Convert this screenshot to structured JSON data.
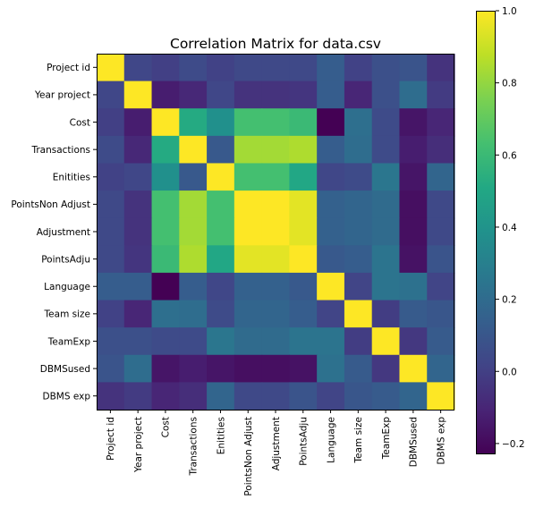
{
  "chart_data": {
    "type": "heatmap",
    "title": "Correlation Matrix for data.csv",
    "labels": [
      "Project id",
      "Year project",
      "Cost",
      "Transactions",
      "Enitities",
      "PointsNon Adjust",
      "Adjustment",
      "PointsAdju",
      "Language",
      "Team size",
      "TeamExp",
      "DBMSused",
      "DBMS exp"
    ],
    "matrix": [
      [
        1.0,
        0.03,
        0.0,
        0.05,
        0.01,
        0.04,
        0.04,
        0.04,
        0.13,
        0.01,
        0.07,
        0.09,
        -0.05
      ],
      [
        0.03,
        1.0,
        -0.13,
        -0.09,
        0.03,
        -0.05,
        -0.05,
        -0.04,
        0.13,
        -0.1,
        0.07,
        0.21,
        -0.02
      ],
      [
        0.0,
        -0.13,
        1.0,
        0.52,
        0.38,
        0.63,
        0.63,
        0.6,
        -0.23,
        0.22,
        0.05,
        -0.16,
        -0.1
      ],
      [
        0.05,
        -0.09,
        0.52,
        1.0,
        0.11,
        0.83,
        0.83,
        0.85,
        0.13,
        0.21,
        0.05,
        -0.13,
        -0.07
      ],
      [
        0.01,
        0.03,
        0.38,
        0.11,
        1.0,
        0.63,
        0.63,
        0.5,
        0.03,
        0.05,
        0.25,
        -0.16,
        0.17
      ],
      [
        0.04,
        -0.05,
        0.63,
        0.83,
        0.63,
        1.0,
        1.0,
        0.95,
        0.15,
        0.17,
        0.2,
        -0.18,
        0.04
      ],
      [
        0.04,
        -0.05,
        0.63,
        0.83,
        0.63,
        1.0,
        1.0,
        0.95,
        0.15,
        0.17,
        0.2,
        -0.18,
        0.04
      ],
      [
        0.04,
        -0.04,
        0.6,
        0.85,
        0.5,
        0.95,
        0.95,
        1.0,
        0.11,
        0.13,
        0.24,
        -0.17,
        0.09
      ],
      [
        0.13,
        0.13,
        -0.23,
        0.13,
        0.03,
        0.15,
        0.15,
        0.11,
        1.0,
        0.02,
        0.24,
        0.23,
        0.02
      ],
      [
        0.01,
        -0.1,
        0.22,
        0.21,
        0.05,
        0.17,
        0.17,
        0.13,
        0.02,
        1.0,
        -0.01,
        0.12,
        0.1
      ],
      [
        0.07,
        0.07,
        0.05,
        0.05,
        0.25,
        0.2,
        0.2,
        0.24,
        0.24,
        -0.01,
        1.0,
        -0.03,
        0.12
      ],
      [
        0.09,
        0.21,
        -0.16,
        -0.13,
        -0.16,
        -0.18,
        -0.18,
        -0.17,
        0.23,
        0.12,
        -0.03,
        1.0,
        0.17
      ],
      [
        -0.05,
        -0.02,
        -0.1,
        -0.07,
        0.17,
        0.04,
        0.04,
        0.09,
        0.02,
        0.1,
        0.12,
        0.17,
        1.0
      ]
    ],
    "colorbar": {
      "min": -0.23,
      "max": 1.0,
      "ticks": [
        "1.0",
        "0.8",
        "0.6",
        "0.4",
        "0.2",
        "0.0",
        "−0.2"
      ],
      "tick_values": [
        1.0,
        0.8,
        0.6,
        0.4,
        0.2,
        0.0,
        -0.2
      ],
      "colormap": "viridis"
    },
    "grid": false
  }
}
